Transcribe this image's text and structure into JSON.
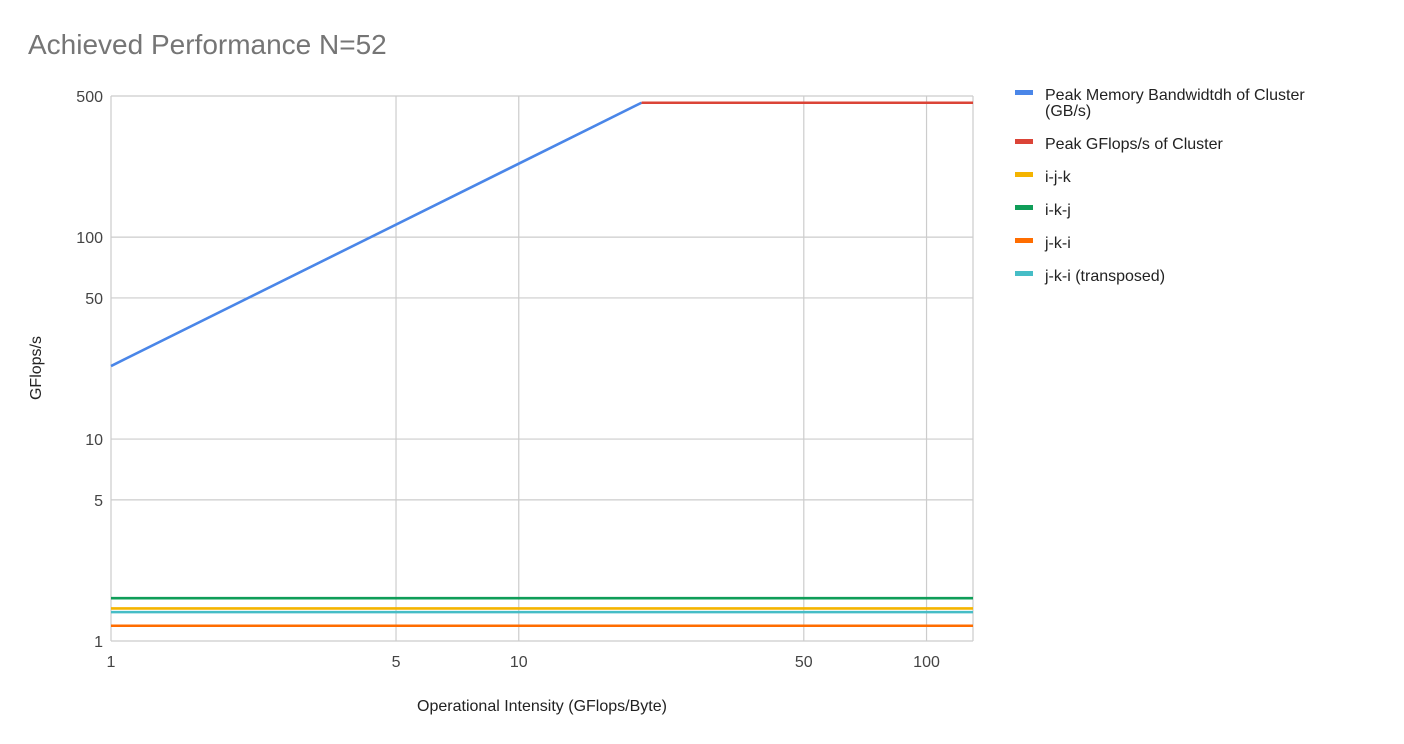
{
  "chart_data": {
    "type": "line",
    "title": "Achieved Performance  N=52",
    "xlabel": "Operational Intensity (GFlops/Byte)",
    "ylabel": "GFlops/s",
    "xscale": "log",
    "yscale": "log",
    "xlim": [
      1,
      130
    ],
    "ylim": [
      1,
      500
    ],
    "xticks": [
      1,
      5,
      10,
      50,
      100
    ],
    "xtick_labels": [
      "1",
      "5",
      "10",
      "50",
      "100"
    ],
    "yticks": [
      1,
      5,
      10,
      50,
      100,
      500
    ],
    "ytick_labels": [
      "1",
      "5",
      "10",
      "50",
      "100",
      "500"
    ],
    "grid": true,
    "legend_position": "right",
    "series": [
      {
        "name": "Peak Memory Bandwidtdh of Cluster (GB/s)",
        "color": "#4a86e8",
        "points": [
          [
            1,
            23
          ],
          [
            20,
            463
          ]
        ]
      },
      {
        "name": "Peak GFlops/s of Cluster",
        "color": "#db4437",
        "points": [
          [
            20,
            463
          ],
          [
            130,
            463
          ]
        ]
      },
      {
        "name": "i-j-k",
        "color": "#f4b400",
        "points": [
          [
            1,
            1.45
          ],
          [
            130,
            1.45
          ]
        ]
      },
      {
        "name": "i-k-j",
        "color": "#0f9d58",
        "points": [
          [
            1,
            1.63
          ],
          [
            130,
            1.63
          ]
        ]
      },
      {
        "name": "j-k-i",
        "color": "#ff6d00",
        "points": [
          [
            1,
            1.19
          ],
          [
            130,
            1.19
          ]
        ]
      },
      {
        "name": "j-k-i (transposed)",
        "color": "#46bdc6",
        "points": [
          [
            1,
            1.39
          ],
          [
            130,
            1.39
          ]
        ]
      }
    ]
  }
}
